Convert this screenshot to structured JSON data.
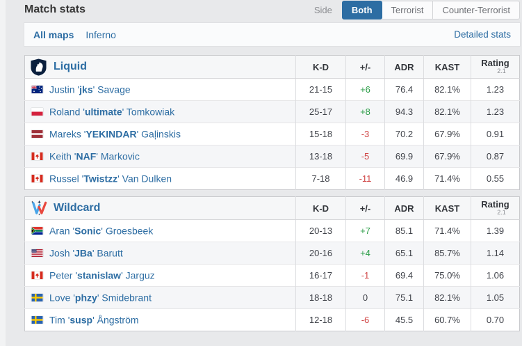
{
  "header": {
    "title": "Match stats",
    "side_label": "Side",
    "tabs": [
      {
        "label": "Both",
        "active": true
      },
      {
        "label": "Terrorist",
        "active": false
      },
      {
        "label": "Counter-Terrorist",
        "active": false
      }
    ]
  },
  "maps_bar": {
    "items": [
      {
        "label": "All maps",
        "active": true
      },
      {
        "label": "Inferno",
        "active": false
      }
    ],
    "detailed_stats_label": "Detailed stats"
  },
  "columns": {
    "kd": "K-D",
    "plus_minus": "+/-",
    "adr": "ADR",
    "kast": "KAST",
    "rating": "Rating",
    "rating_version": "2.1"
  },
  "colors": {
    "accent_blue": "#2d6da3",
    "positive_green": "#2e9e4a",
    "negative_red": "#d04545",
    "active_tab_bg": "#2d6da3",
    "page_background": "#e8e9eb"
  },
  "teams": [
    {
      "name": "Liquid",
      "logo": "liquid",
      "players": [
        {
          "flag": "australia",
          "first": "Justin",
          "nick": "jks",
          "last": "Savage",
          "kd": "21-15",
          "pm": "+6",
          "adr": "76.4",
          "kast": "82.1%",
          "rating": "1.23"
        },
        {
          "flag": "poland",
          "first": "Roland",
          "nick": "ultimate",
          "last": "Tomkowiak",
          "kd": "25-17",
          "pm": "+8",
          "adr": "94.3",
          "kast": "82.1%",
          "rating": "1.23"
        },
        {
          "flag": "latvia",
          "first": "Mareks",
          "nick": "YEKINDAR",
          "last": "Gaļinskis",
          "kd": "15-18",
          "pm": "-3",
          "adr": "70.2",
          "kast": "67.9%",
          "rating": "0.91"
        },
        {
          "flag": "canada",
          "first": "Keith",
          "nick": "NAF",
          "last": "Markovic",
          "kd": "13-18",
          "pm": "-5",
          "adr": "69.9",
          "kast": "67.9%",
          "rating": "0.87"
        },
        {
          "flag": "canada",
          "first": "Russel",
          "nick": "Twistzz",
          "last": "Van Dulken",
          "kd": "7-18",
          "pm": "-11",
          "adr": "46.9",
          "kast": "71.4%",
          "rating": "0.55"
        }
      ]
    },
    {
      "name": "Wildcard",
      "logo": "wildcard",
      "players": [
        {
          "flag": "southafrica",
          "first": "Aran",
          "nick": "Sonic",
          "last": "Groesbeek",
          "kd": "20-13",
          "pm": "+7",
          "adr": "85.1",
          "kast": "71.4%",
          "rating": "1.39"
        },
        {
          "flag": "usa",
          "first": "Josh",
          "nick": "JBa",
          "last": "Barutt",
          "kd": "20-16",
          "pm": "+4",
          "adr": "65.1",
          "kast": "85.7%",
          "rating": "1.14"
        },
        {
          "flag": "canada",
          "first": "Peter",
          "nick": "stanislaw",
          "last": "Jarguz",
          "kd": "16-17",
          "pm": "-1",
          "adr": "69.4",
          "kast": "75.0%",
          "rating": "1.06"
        },
        {
          "flag": "sweden",
          "first": "Love",
          "nick": "phzy",
          "last": "Smidebrant",
          "kd": "18-18",
          "pm": "0",
          "adr": "75.1",
          "kast": "82.1%",
          "rating": "1.05"
        },
        {
          "flag": "sweden",
          "first": "Tim",
          "nick": "susp",
          "last": "Ångström",
          "kd": "12-18",
          "pm": "-6",
          "adr": "45.5",
          "kast": "60.7%",
          "rating": "0.70"
        }
      ]
    }
  ]
}
